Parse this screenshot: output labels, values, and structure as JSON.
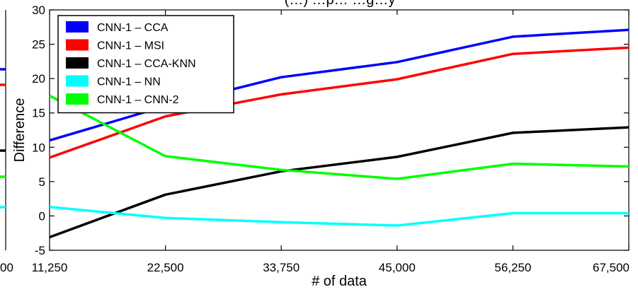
{
  "chart_data": {
    "type": "line",
    "title": "(…) …p… …g…y",
    "xlabel": "# of data",
    "ylabel": "Difference",
    "x": [
      11250,
      22500,
      33750,
      45000,
      56250,
      67500
    ],
    "x_tick_labels": [
      "11,250",
      "22,500",
      "33,750",
      "45,000",
      "56,250",
      "67,500"
    ],
    "xlim": [
      11250,
      67500
    ],
    "ylim": [
      -5,
      30
    ],
    "y_ticks": [
      -5,
      0,
      5,
      10,
      15,
      20,
      25,
      30
    ],
    "y_tick_labels": [
      "-5",
      "0",
      "5",
      "10",
      "15",
      "20",
      "25",
      "30"
    ],
    "legend_position": "top-left",
    "grid": false,
    "series": [
      {
        "name": "CNN-1 – CCA",
        "color": "#0000ff",
        "values": [
          11.0,
          16.0,
          20.2,
          22.4,
          26.1,
          27.1
        ]
      },
      {
        "name": "CNN-1 – MSI",
        "color": "#ff0000",
        "values": [
          8.5,
          14.5,
          17.7,
          19.9,
          23.6,
          24.5
        ]
      },
      {
        "name": "CNN-1 – CCA-KNN",
        "color": "#000000",
        "values": [
          -3.1,
          3.1,
          6.5,
          8.6,
          12.1,
          12.9
        ]
      },
      {
        "name": "CNN-1 – NN",
        "color": "#00ffff",
        "values": [
          1.3,
          -0.3,
          -0.9,
          -1.4,
          0.4,
          0.4
        ]
      },
      {
        "name": "CNN-1 – CNN-2",
        "color": "#00ff00",
        "values": [
          17.5,
          8.7,
          6.7,
          5.4,
          7.6,
          7.2
        ]
      }
    ],
    "left_panel_fragment": {
      "x_tick_label": "00",
      "series_colors": [
        "#0000ff",
        "#ff0000",
        "#000000",
        "#00ff00",
        "#00ffff"
      ]
    }
  }
}
